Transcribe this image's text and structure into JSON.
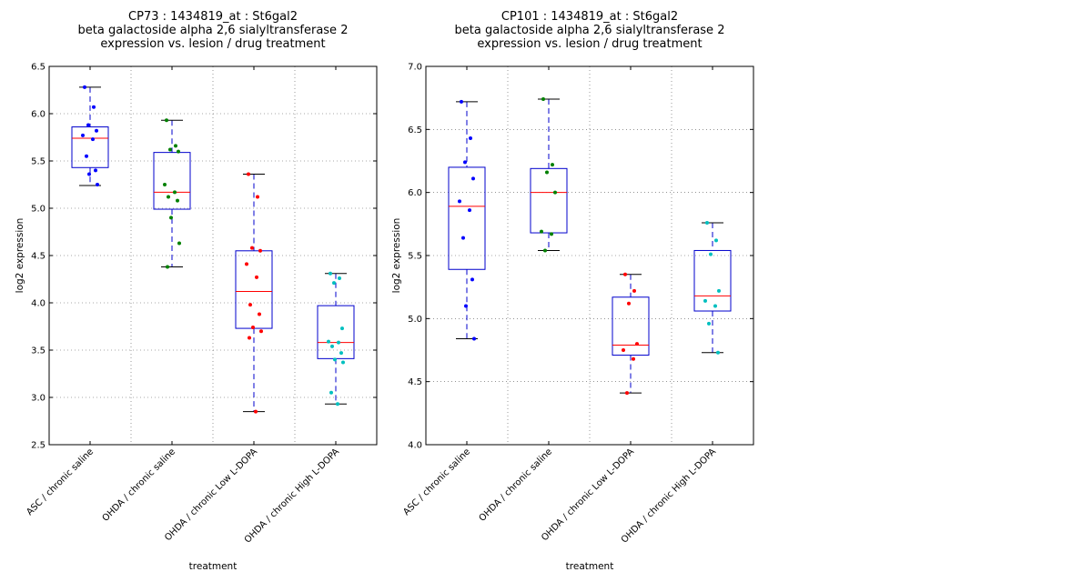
{
  "chart_data": [
    {
      "type": "box",
      "title": [
        "CP73 : 1434819_at : St6gal2",
        "beta galactoside alpha 2,6 sialyltransferase 2",
        "expression vs. lesion / drug treatment"
      ],
      "xlabel": "treatment",
      "ylabel": "log2 expression",
      "ylim": [
        2.5,
        6.5
      ],
      "yticks": [
        "2.5",
        "3.0",
        "3.5",
        "4.0",
        "4.5",
        "5.0",
        "5.5",
        "6.0",
        "6.5"
      ],
      "grid": true,
      "categories": [
        "ASC / chronic saline",
        "OHDA / chronic saline",
        "OHDA / chronic Low L-DOPA",
        "OHDA / chronic High L-DOPA"
      ],
      "boxes": [
        {
          "whisker_low": 5.24,
          "q1": 5.43,
          "median": 5.74,
          "q3": 5.86,
          "whisker_high": 6.28
        },
        {
          "whisker_low": 4.38,
          "q1": 4.99,
          "median": 5.17,
          "q3": 5.59,
          "whisker_high": 5.93
        },
        {
          "whisker_low": 2.85,
          "q1": 3.73,
          "median": 4.12,
          "q3": 4.55,
          "whisker_high": 5.36
        },
        {
          "whisker_low": 2.93,
          "q1": 3.41,
          "median": 3.58,
          "q3": 3.97,
          "whisker_high": 4.31
        }
      ],
      "points": [
        [
          6.28,
          6.07,
          5.88,
          5.82,
          5.77,
          5.73,
          5.55,
          5.4,
          5.36,
          5.25
        ],
        [
          5.93,
          5.66,
          5.62,
          5.6,
          5.25,
          5.17,
          5.12,
          5.08,
          4.9,
          4.63,
          4.38
        ],
        [
          5.36,
          5.12,
          4.58,
          4.55,
          4.41,
          4.27,
          3.98,
          3.88,
          3.74,
          3.7,
          3.63,
          2.85
        ],
        [
          4.31,
          4.26,
          4.21,
          3.73,
          3.59,
          3.58,
          3.54,
          3.47,
          3.4,
          3.37,
          3.05,
          2.93
        ]
      ],
      "point_colors": [
        "#0000ff",
        "#008000",
        "#ff0000",
        "#00bfbf"
      ]
    },
    {
      "type": "box",
      "title": [
        "CP101 : 1434819_at : St6gal2",
        "beta galactoside alpha 2,6 sialyltransferase 2",
        "expression vs. lesion / drug treatment"
      ],
      "xlabel": "treatment",
      "ylabel": "log2 expression",
      "ylim": [
        4.0,
        7.0
      ],
      "yticks": [
        "4.0",
        "4.5",
        "5.0",
        "5.5",
        "6.0",
        "6.5",
        "7.0"
      ],
      "grid": true,
      "categories": [
        "ASC / chronic saline",
        "OHDA / chronic saline",
        "OHDA / chronic Low L-DOPA",
        "OHDA / chronic High L-DOPA"
      ],
      "boxes": [
        {
          "whisker_low": 4.84,
          "q1": 5.39,
          "median": 5.89,
          "q3": 6.2,
          "whisker_high": 6.72
        },
        {
          "whisker_low": 5.54,
          "q1": 5.68,
          "median": 6.0,
          "q3": 6.19,
          "whisker_high": 6.74
        },
        {
          "whisker_low": 4.41,
          "q1": 4.71,
          "median": 4.79,
          "q3": 5.17,
          "whisker_high": 5.35
        },
        {
          "whisker_low": 4.73,
          "q1": 5.06,
          "median": 5.18,
          "q3": 5.54,
          "whisker_high": 5.76
        }
      ],
      "points": [
        [
          6.72,
          6.43,
          6.24,
          6.11,
          5.93,
          5.86,
          5.64,
          5.31,
          5.1,
          4.84
        ],
        [
          6.74,
          6.22,
          6.16,
          6.0,
          5.69,
          5.67,
          5.54
        ],
        [
          5.35,
          5.22,
          5.12,
          4.8,
          4.75,
          4.68,
          4.41
        ],
        [
          5.76,
          5.62,
          5.51,
          5.22,
          5.14,
          5.1,
          4.96,
          4.73
        ]
      ],
      "point_colors": [
        "#0000ff",
        "#008000",
        "#ff0000",
        "#00bfbf"
      ]
    }
  ]
}
